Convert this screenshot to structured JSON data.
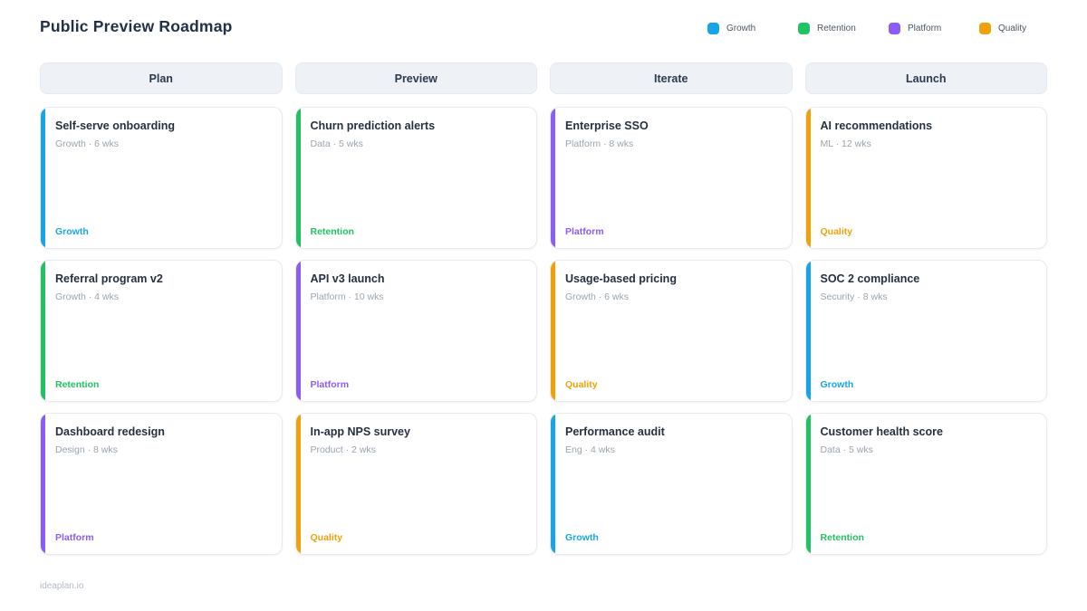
{
  "page": {
    "title": "Public Preview Roadmap",
    "footer": "ideaplan.io"
  },
  "colors": {
    "growth": "#18a5e8",
    "retention": "#22c163",
    "platform": "#8b5cf6",
    "quality": "#f0a10a"
  },
  "legend": [
    {
      "label": "Growth",
      "key": "growth"
    },
    {
      "label": "Retention",
      "key": "retention"
    },
    {
      "label": "Platform",
      "key": "platform"
    },
    {
      "label": "Quality",
      "key": "quality"
    }
  ],
  "columns": [
    {
      "header": "Plan",
      "cards": [
        {
          "title": "Self-serve onboarding",
          "meta": "Growth · 6 wks",
          "tag": "Growth",
          "key": "growth"
        },
        {
          "title": "Referral program v2",
          "meta": "Growth · 4 wks",
          "tag": "Retention",
          "key": "retention"
        },
        {
          "title": "Dashboard redesign",
          "meta": "Design · 8 wks",
          "tag": "Platform",
          "key": "platform"
        }
      ]
    },
    {
      "header": "Preview",
      "cards": [
        {
          "title": "Churn prediction alerts",
          "meta": "Data · 5 wks",
          "tag": "Retention",
          "key": "retention"
        },
        {
          "title": "API v3 launch",
          "meta": "Platform · 10 wks",
          "tag": "Platform",
          "key": "platform"
        },
        {
          "title": "In-app NPS survey",
          "meta": "Product · 2 wks",
          "tag": "Quality",
          "key": "quality"
        }
      ]
    },
    {
      "header": "Iterate",
      "cards": [
        {
          "title": "Enterprise SSO",
          "meta": "Platform · 8 wks",
          "tag": "Platform",
          "key": "platform"
        },
        {
          "title": "Usage-based pricing",
          "meta": "Growth · 6 wks",
          "tag": "Quality",
          "key": "quality"
        },
        {
          "title": "Performance audit",
          "meta": "Eng · 4 wks",
          "tag": "Growth",
          "key": "growth"
        }
      ]
    },
    {
      "header": "Launch",
      "cards": [
        {
          "title": "AI recommendations",
          "meta": "ML · 12 wks",
          "tag": "Quality",
          "key": "quality"
        },
        {
          "title": "SOC 2 compliance",
          "meta": "Security · 8 wks",
          "tag": "Growth",
          "key": "growth"
        },
        {
          "title": "Customer health score",
          "meta": "Data · 5 wks",
          "tag": "Retention",
          "key": "retention"
        }
      ]
    }
  ]
}
